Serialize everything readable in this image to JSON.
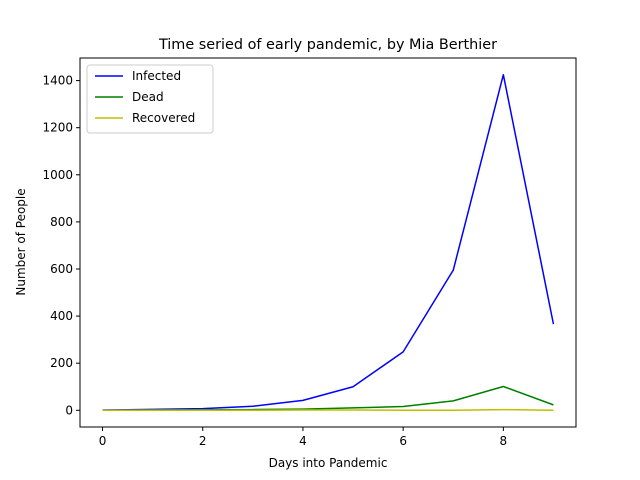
{
  "chart_data": {
    "type": "line",
    "title": "Time seried of early pandemic, by Mia Berthier",
    "xlabel": "Days into Pandemic",
    "ylabel": "Number of People",
    "x": [
      0,
      1,
      2,
      3,
      4,
      5,
      6,
      7,
      8,
      9
    ],
    "xlim": [
      -0.45,
      9.45
    ],
    "ylim": [
      -71,
      1496
    ],
    "xticks": [
      0,
      2,
      4,
      6,
      8
    ],
    "yticks": [
      0,
      200,
      400,
      600,
      800,
      1000,
      1200,
      1400
    ],
    "grid": false,
    "legend_position": "upper-left",
    "series": [
      {
        "name": "Infected",
        "color": "#0000ff",
        "values": [
          1,
          4,
          7,
          17,
          42,
          100,
          248,
          595,
          1425,
          366
        ]
      },
      {
        "name": "Dead",
        "color": "#008000",
        "values": [
          0,
          1,
          2,
          3,
          5,
          10,
          16,
          40,
          101,
          23
        ]
      },
      {
        "name": "Recovered",
        "color": "#bfbf00",
        "values": [
          0,
          0,
          0,
          0,
          1,
          1,
          0,
          0,
          3,
          0
        ]
      }
    ]
  }
}
